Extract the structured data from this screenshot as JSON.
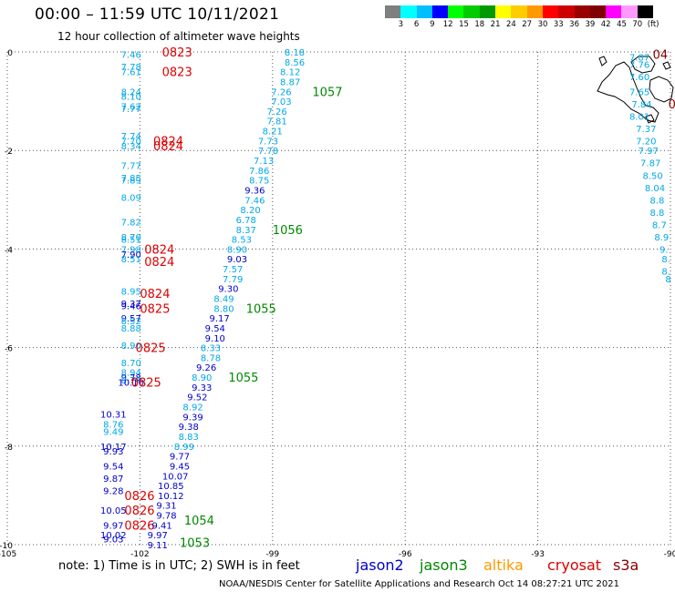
{
  "header": {
    "title": "00:00 – 11:59 UTC 10/11/2021",
    "subtitle": "12 hour collection of altimeter wave heights"
  },
  "legend": {
    "colors": [
      "#7f7f7f",
      "#00ffff",
      "#00bfff",
      "#0000ff",
      "#00ff00",
      "#00cc00",
      "#009900",
      "#ffff00",
      "#ffcc00",
      "#ff9900",
      "#ff0000",
      "#cc0000",
      "#990000",
      "#7f0000",
      "#ff00ff",
      "#ff99ff",
      "#000000"
    ],
    "ticks": [
      "3",
      "6",
      "9",
      "12",
      "15",
      "18",
      "21",
      "24",
      "27",
      "30",
      "33",
      "36",
      "39",
      "42",
      "45",
      "70",
      "(ft)"
    ]
  },
  "axes": {
    "x_labels": [
      "-105",
      "-102",
      "-99",
      "-96",
      "-93",
      "-90"
    ],
    "y_labels": [
      "0",
      "-2",
      "-4",
      "-6",
      "-8",
      "-10"
    ]
  },
  "note": "note:  1) Time is in UTC;  2) SWH is in feet",
  "satellites": [
    {
      "name": "jason2",
      "color": "#0000cc"
    },
    {
      "name": "jason3",
      "color": "#008800"
    },
    {
      "name": "altika",
      "color": "#ff9900"
    },
    {
      "name": "cryosat",
      "color": "#dd0000"
    },
    {
      "name": "s3a",
      "color": "#880000"
    }
  ],
  "credit": "NOAA/NESDIS Center for Satellite Applications and Research     Oct 14 08:27:21 UTC 2021",
  "map_data": {
    "lon_range": [
      -105,
      -90
    ],
    "lat_range": [
      -10,
      0
    ],
    "track_colors": {
      "light": "#00a8e8",
      "dark": "#0000cc",
      "time_red": "#dd0000",
      "time_green": "#008800",
      "time_brown": "#880000"
    },
    "tracks": [
      {
        "name": "west-track",
        "obs": [
          {
            "lat": -0.05,
            "lon": -102.2,
            "v": "7.46",
            "c": "light"
          },
          {
            "lat": -0.3,
            "lon": -102.2,
            "v": "7.78",
            "c": "light"
          },
          {
            "lat": -0.4,
            "lon": -102.2,
            "v": "7.61",
            "c": "light"
          },
          {
            "lat": -0.8,
            "lon": -102.2,
            "v": "8.24",
            "c": "light"
          },
          {
            "lat": -0.9,
            "lon": -102.2,
            "v": "8.10",
            "c": "light"
          },
          {
            "lat": -1.1,
            "lon": -102.2,
            "v": "7.62",
            "c": "light"
          },
          {
            "lat": -1.15,
            "lon": -102.2,
            "v": "7.77",
            "c": "light"
          },
          {
            "lat": -1.7,
            "lon": -102.2,
            "v": "7.74",
            "c": "light"
          },
          {
            "lat": -1.8,
            "lon": -102.2,
            "v": "7.70",
            "c": "light"
          },
          {
            "lat": -1.9,
            "lon": -102.2,
            "v": "8.34",
            "c": "light"
          },
          {
            "lat": -2.3,
            "lon": -102.2,
            "v": "7.77",
            "c": "light"
          },
          {
            "lat": -2.55,
            "lon": -102.2,
            "v": "7.85",
            "c": "light"
          },
          {
            "lat": -2.6,
            "lon": -102.2,
            "v": "7.89",
            "c": "light"
          },
          {
            "lat": -2.95,
            "lon": -102.2,
            "v": "8.09",
            "c": "light"
          },
          {
            "lat": -3.45,
            "lon": -102.2,
            "v": "7.82",
            "c": "light"
          },
          {
            "lat": -3.75,
            "lon": -102.2,
            "v": "8.70",
            "c": "light"
          },
          {
            "lat": -3.8,
            "lon": -102.2,
            "v": "8.51",
            "c": "light"
          },
          {
            "lat": -4.0,
            "lon": -102.2,
            "v": "7.98",
            "c": "light"
          },
          {
            "lat": -4.1,
            "lon": -102.2,
            "v": "7.90",
            "c": "dark"
          },
          {
            "lat": -4.2,
            "lon": -102.2,
            "v": "8.51",
            "c": "light"
          },
          {
            "lat": -4.85,
            "lon": -102.2,
            "v": "8.95",
            "c": "light"
          },
          {
            "lat": -5.1,
            "lon": -102.2,
            "v": "9.37",
            "c": "dark"
          },
          {
            "lat": -5.15,
            "lon": -102.2,
            "v": "9.46",
            "c": "dark"
          },
          {
            "lat": -5.4,
            "lon": -102.2,
            "v": "9.57",
            "c": "dark"
          },
          {
            "lat": -5.45,
            "lon": -102.2,
            "v": "8.52",
            "c": "light"
          },
          {
            "lat": -5.6,
            "lon": -102.2,
            "v": "8.88",
            "c": "light"
          },
          {
            "lat": -5.95,
            "lon": -102.2,
            "v": "8.90",
            "c": "light"
          },
          {
            "lat": -6.3,
            "lon": -102.2,
            "v": "8.70",
            "c": "light"
          },
          {
            "lat": -6.5,
            "lon": -102.2,
            "v": "8.94",
            "c": "light"
          },
          {
            "lat": -6.6,
            "lon": -102.2,
            "v": "9.78",
            "c": "dark"
          },
          {
            "lat": -6.65,
            "lon": -102.2,
            "v": "8.74",
            "c": "light"
          },
          {
            "lat": -6.7,
            "lon": -102.2,
            "v": "10.10",
            "c": "dark"
          },
          {
            "lat": -7.35,
            "lon": -102.6,
            "v": "10.31",
            "c": "dark"
          },
          {
            "lat": -7.55,
            "lon": -102.6,
            "v": "8.76",
            "c": "light"
          },
          {
            "lat": -7.7,
            "lon": -102.6,
            "v": "9.49",
            "c": "light"
          },
          {
            "lat": -8.0,
            "lon": -102.6,
            "v": "10.17",
            "c": "dark"
          },
          {
            "lat": -8.1,
            "lon": -102.6,
            "v": "9.93",
            "c": "dark"
          },
          {
            "lat": -8.4,
            "lon": -102.6,
            "v": "9.54",
            "c": "dark"
          },
          {
            "lat": -8.65,
            "lon": -102.6,
            "v": "9.87",
            "c": "dark"
          },
          {
            "lat": -8.9,
            "lon": -102.6,
            "v": "9.28",
            "c": "dark"
          },
          {
            "lat": -9.3,
            "lon": -102.6,
            "v": "10.05",
            "c": "dark"
          },
          {
            "lat": -9.6,
            "lon": -102.6,
            "v": "9.97",
            "c": "dark"
          },
          {
            "lat": -9.8,
            "lon": -102.6,
            "v": "10.02",
            "c": "dark"
          },
          {
            "lat": -9.88,
            "lon": -102.6,
            "v": "9.03",
            "c": "dark"
          }
        ],
        "times": [
          {
            "lat": 0.0,
            "lon": -101.5,
            "t": "0823",
            "c": "time_red"
          },
          {
            "lat": -0.4,
            "lon": -101.5,
            "t": "0823",
            "c": "time_red"
          },
          {
            "lat": -1.8,
            "lon": -101.7,
            "t": "0824",
            "c": "time_red"
          },
          {
            "lat": -1.9,
            "lon": -101.7,
            "t": "0824",
            "c": "time_red"
          },
          {
            "lat": -4.0,
            "lon": -101.9,
            "t": "0824",
            "c": "time_red"
          },
          {
            "lat": -4.25,
            "lon": -101.9,
            "t": "0824",
            "c": "time_red"
          },
          {
            "lat": -4.9,
            "lon": -102.0,
            "t": "0824",
            "c": "time_red"
          },
          {
            "lat": -5.2,
            "lon": -102.0,
            "t": "0825",
            "c": "time_red"
          },
          {
            "lat": -6.0,
            "lon": -102.1,
            "t": "0825",
            "c": "time_red"
          },
          {
            "lat": -6.7,
            "lon": -102.2,
            "t": "0825",
            "c": "time_red"
          },
          {
            "lat": -9.0,
            "lon": -102.35,
            "t": "0826",
            "c": "time_red"
          },
          {
            "lat": -9.3,
            "lon": -102.35,
            "t": "0826",
            "c": "time_red"
          },
          {
            "lat": -9.6,
            "lon": -102.35,
            "t": "0826",
            "c": "time_red"
          }
        ]
      },
      {
        "name": "diagonal-track",
        "obs": [
          {
            "lat": 0.0,
            "lon": -98.5,
            "v": "8.18",
            "c": "light"
          },
          {
            "lat": -0.2,
            "lon": -98.5,
            "v": "8.56",
            "c": "light"
          },
          {
            "lat": -0.4,
            "lon": -98.6,
            "v": "8.12",
            "c": "light"
          },
          {
            "lat": -0.6,
            "lon": -98.6,
            "v": "8.87",
            "c": "light"
          },
          {
            "lat": -0.8,
            "lon": -98.8,
            "v": "7.26",
            "c": "light"
          },
          {
            "lat": -1.0,
            "lon": -98.8,
            "v": "7.03",
            "c": "light"
          },
          {
            "lat": -1.2,
            "lon": -98.9,
            "v": "7.26",
            "c": "light"
          },
          {
            "lat": -1.4,
            "lon": -98.9,
            "v": "7.81",
            "c": "light"
          },
          {
            "lat": -1.6,
            "lon": -99.0,
            "v": "8.21",
            "c": "light"
          },
          {
            "lat": -1.8,
            "lon": -99.1,
            "v": "7.73",
            "c": "light"
          },
          {
            "lat": -2.0,
            "lon": -99.1,
            "v": "7.78",
            "c": "light"
          },
          {
            "lat": -2.2,
            "lon": -99.2,
            "v": "7.13",
            "c": "light"
          },
          {
            "lat": -2.4,
            "lon": -99.3,
            "v": "7.86",
            "c": "light"
          },
          {
            "lat": -2.6,
            "lon": -99.3,
            "v": "8.75",
            "c": "light"
          },
          {
            "lat": -2.8,
            "lon": -99.4,
            "v": "9.36",
            "c": "dark"
          },
          {
            "lat": -3.0,
            "lon": -99.4,
            "v": "7.46",
            "c": "light"
          },
          {
            "lat": -3.2,
            "lon": -99.5,
            "v": "8.20",
            "c": "light"
          },
          {
            "lat": -3.4,
            "lon": -99.6,
            "v": "6.78",
            "c": "light"
          },
          {
            "lat": -3.6,
            "lon": -99.6,
            "v": "8.37",
            "c": "light"
          },
          {
            "lat": -3.8,
            "lon": -99.7,
            "v": "8.53",
            "c": "light"
          },
          {
            "lat": -4.0,
            "lon": -99.8,
            "v": "8.90",
            "c": "light"
          },
          {
            "lat": -4.2,
            "lon": -99.8,
            "v": "9.03",
            "c": "dark"
          },
          {
            "lat": -4.4,
            "lon": -99.9,
            "v": "7.57",
            "c": "light"
          },
          {
            "lat": -4.6,
            "lon": -99.9,
            "v": "7.79",
            "c": "light"
          },
          {
            "lat": -4.8,
            "lon": -100.0,
            "v": "9.30",
            "c": "dark"
          },
          {
            "lat": -5.0,
            "lon": -100.1,
            "v": "8.49",
            "c": "light"
          },
          {
            "lat": -5.2,
            "lon": -100.1,
            "v": "8.80",
            "c": "light"
          },
          {
            "lat": -5.4,
            "lon": -100.2,
            "v": "9.17",
            "c": "dark"
          },
          {
            "lat": -5.6,
            "lon": -100.3,
            "v": "9.54",
            "c": "dark"
          },
          {
            "lat": -5.8,
            "lon": -100.3,
            "v": "9.10",
            "c": "dark"
          },
          {
            "lat": -6.0,
            "lon": -100.4,
            "v": "8.33",
            "c": "light"
          },
          {
            "lat": -6.2,
            "lon": -100.4,
            "v": "8.78",
            "c": "light"
          },
          {
            "lat": -6.4,
            "lon": -100.5,
            "v": "9.26",
            "c": "dark"
          },
          {
            "lat": -6.6,
            "lon": -100.6,
            "v": "8.90",
            "c": "light"
          },
          {
            "lat": -6.8,
            "lon": -100.6,
            "v": "9.33",
            "c": "dark"
          },
          {
            "lat": -7.0,
            "lon": -100.7,
            "v": "9.52",
            "c": "dark"
          },
          {
            "lat": -7.2,
            "lon": -100.8,
            "v": "8.92",
            "c": "light"
          },
          {
            "lat": -7.4,
            "lon": -100.8,
            "v": "9.39",
            "c": "dark"
          },
          {
            "lat": -7.6,
            "lon": -100.9,
            "v": "9.38",
            "c": "dark"
          },
          {
            "lat": -7.8,
            "lon": -100.9,
            "v": "8.83",
            "c": "light"
          },
          {
            "lat": -8.0,
            "lon": -101.0,
            "v": "8.99",
            "c": "light"
          },
          {
            "lat": -8.2,
            "lon": -101.1,
            "v": "9.77",
            "c": "dark"
          },
          {
            "lat": -8.4,
            "lon": -101.1,
            "v": "9.45",
            "c": "dark"
          },
          {
            "lat": -8.6,
            "lon": -101.2,
            "v": "10.07",
            "c": "dark"
          },
          {
            "lat": -8.8,
            "lon": -101.3,
            "v": "10.85",
            "c": "dark"
          },
          {
            "lat": -9.0,
            "lon": -101.3,
            "v": "10.12",
            "c": "dark"
          },
          {
            "lat": -9.2,
            "lon": -101.4,
            "v": "9.31",
            "c": "dark"
          },
          {
            "lat": -9.4,
            "lon": -101.4,
            "v": "9.78",
            "c": "dark"
          },
          {
            "lat": -9.6,
            "lon": -101.5,
            "v": "9.41",
            "c": "dark"
          },
          {
            "lat": -9.8,
            "lon": -101.6,
            "v": "9.97",
            "c": "dark"
          },
          {
            "lat": -10.0,
            "lon": -101.6,
            "v": "9.11",
            "c": "dark"
          }
        ],
        "times": [
          {
            "lat": -0.8,
            "lon": -98.1,
            "t": "1057",
            "c": "time_green"
          },
          {
            "lat": -3.6,
            "lon": -99.0,
            "t": "1056",
            "c": "time_green"
          },
          {
            "lat": -5.2,
            "lon": -99.6,
            "t": "1055",
            "c": "time_green"
          },
          {
            "lat": -6.6,
            "lon": -100.0,
            "t": "1055",
            "c": "time_green"
          },
          {
            "lat": -9.5,
            "lon": -101.0,
            "t": "1054",
            "c": "time_green"
          },
          {
            "lat": -9.95,
            "lon": -101.1,
            "t": "1053",
            "c": "time_green"
          }
        ]
      },
      {
        "name": "east-track",
        "obs": [
          {
            "lat": -0.1,
            "lon": -90.7,
            "v": "7.87",
            "c": "light"
          },
          {
            "lat": -0.25,
            "lon": -90.7,
            "v": "7.76",
            "c": "light"
          },
          {
            "lat": -0.5,
            "lon": -90.7,
            "v": "7.60",
            "c": "light"
          },
          {
            "lat": -0.8,
            "lon": -90.7,
            "v": "7.65",
            "c": "light"
          },
          {
            "lat": -1.05,
            "lon": -90.65,
            "v": "7.84",
            "c": "light"
          },
          {
            "lat": -1.3,
            "lon": -90.7,
            "v": "8.01",
            "c": "light"
          },
          {
            "lat": -1.55,
            "lon": -90.55,
            "v": "7.37",
            "c": "light"
          },
          {
            "lat": -1.8,
            "lon": -90.55,
            "v": "7.20",
            "c": "light"
          },
          {
            "lat": -2.0,
            "lon": -90.5,
            "v": "7.97",
            "c": "light"
          },
          {
            "lat": -2.25,
            "lon": -90.45,
            "v": "7.87",
            "c": "light"
          },
          {
            "lat": -2.5,
            "lon": -90.4,
            "v": "8.50",
            "c": "light"
          },
          {
            "lat": -2.75,
            "lon": -90.35,
            "v": "8.04",
            "c": "light"
          },
          {
            "lat": -3.0,
            "lon": -90.3,
            "v": "8.8",
            "c": "light"
          },
          {
            "lat": -3.25,
            "lon": -90.3,
            "v": "8.8",
            "c": "light"
          },
          {
            "lat": -3.5,
            "lon": -90.25,
            "v": "8.7",
            "c": "light"
          },
          {
            "lat": -3.75,
            "lon": -90.2,
            "v": "8.9",
            "c": "light"
          },
          {
            "lat": -4.0,
            "lon": -90.15,
            "v": "9.",
            "c": "light"
          },
          {
            "lat": -4.2,
            "lon": -90.1,
            "v": "8.",
            "c": "light"
          },
          {
            "lat": -4.45,
            "lon": -90.1,
            "v": "8.",
            "c": "light"
          },
          {
            "lat": -4.6,
            "lon": -90.05,
            "v": "8",
            "c": "light"
          }
        ],
        "times": [
          {
            "lat": -0.05,
            "lon": -90.4,
            "t": "04",
            "c": "time_brown"
          },
          {
            "lat": -1.05,
            "lon": -90.05,
            "t": "0",
            "c": "time_brown"
          }
        ]
      }
    ]
  }
}
